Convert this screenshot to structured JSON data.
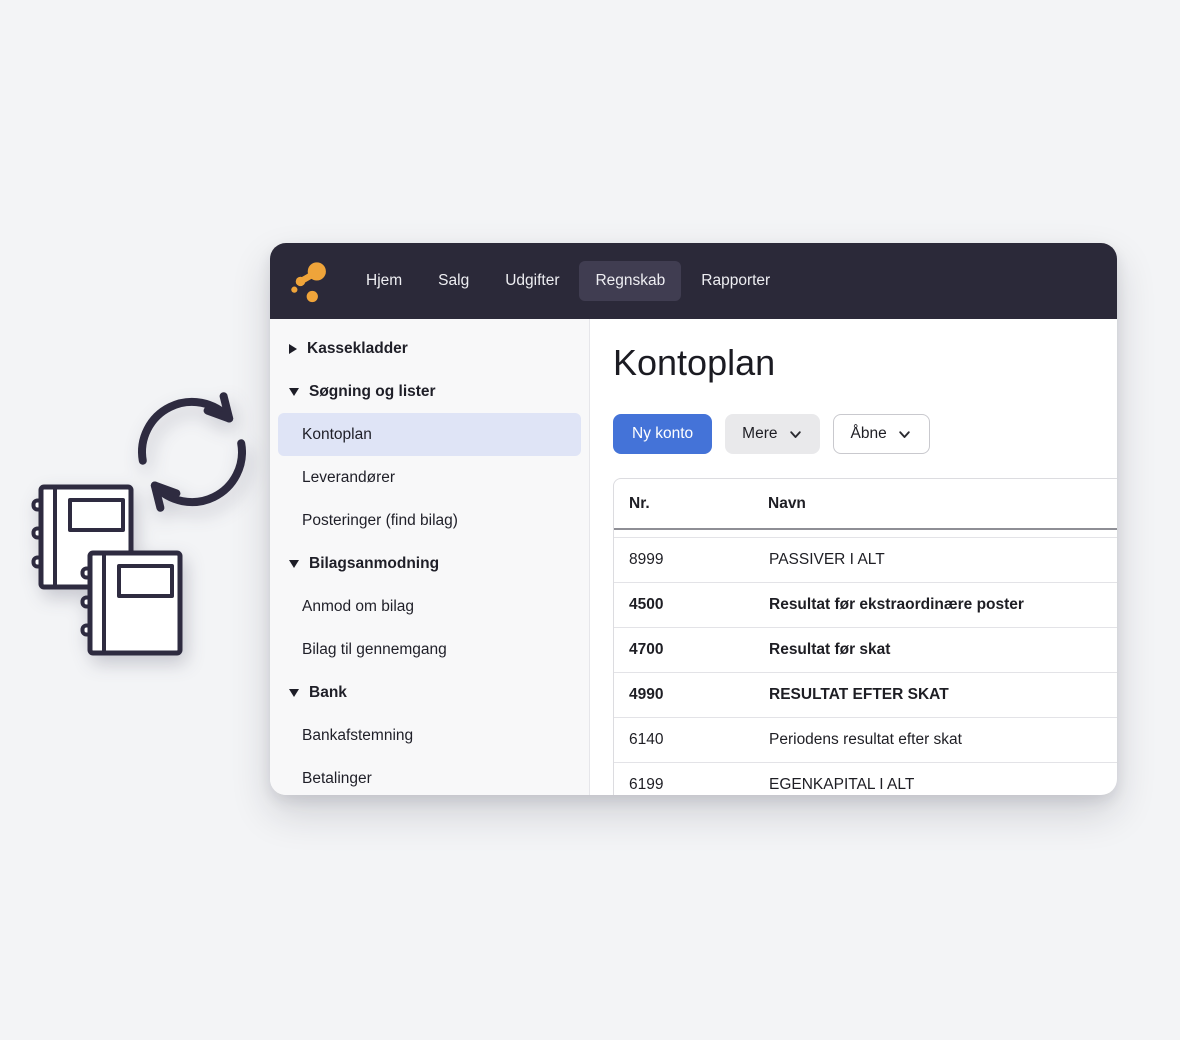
{
  "nav": {
    "items": [
      {
        "label": "Hjem",
        "active": false
      },
      {
        "label": "Salg",
        "active": false
      },
      {
        "label": "Udgifter",
        "active": false
      },
      {
        "label": "Regnskab",
        "active": true
      },
      {
        "label": "Rapporter",
        "active": false
      }
    ]
  },
  "sidebar": {
    "items": [
      {
        "label": "Kassekladder",
        "type": "section",
        "state": "collapsed",
        "selected": false
      },
      {
        "label": "Søgning og lister",
        "type": "section",
        "state": "expanded",
        "selected": false
      },
      {
        "label": "Kontoplan",
        "type": "item",
        "selected": true
      },
      {
        "label": "Leverandører",
        "type": "item",
        "selected": false
      },
      {
        "label": "Posteringer (find bilag)",
        "type": "item",
        "selected": false
      },
      {
        "label": "Bilagsanmodning",
        "type": "section",
        "state": "expanded",
        "selected": false
      },
      {
        "label": "Anmod om bilag",
        "type": "item",
        "selected": false
      },
      {
        "label": "Bilag til gennemgang",
        "type": "item",
        "selected": false
      },
      {
        "label": "Bank",
        "type": "section",
        "state": "expanded",
        "selected": false
      },
      {
        "label": "Bankafstemning",
        "type": "item",
        "selected": false
      },
      {
        "label": "Betalinger",
        "type": "item",
        "selected": false
      }
    ]
  },
  "main": {
    "title": "Kontoplan",
    "buttons": {
      "new_account": "Ny konto",
      "more": "Mere",
      "open": "Åbne"
    },
    "table": {
      "columns": [
        "Nr.",
        "Navn"
      ],
      "rows": [
        {
          "nr": "8999",
          "navn": "PASSIVER I ALT",
          "bold": false
        },
        {
          "nr": "4500",
          "navn": "Resultat før ekstraordinære poster",
          "bold": true
        },
        {
          "nr": "4700",
          "navn": "Resultat før skat",
          "bold": true
        },
        {
          "nr": "4990",
          "navn": "RESULTAT EFTER SKAT",
          "bold": true
        },
        {
          "nr": "6140",
          "navn": "Periodens resultat efter skat",
          "bold": false
        },
        {
          "nr": "6199",
          "navn": "EGENKAPITAL I ALT",
          "bold": false
        }
      ]
    }
  },
  "illustration": {
    "icons": [
      "sync-arrows-icon",
      "notebook-back-icon",
      "notebook-front-icon"
    ]
  },
  "colors": {
    "page_bg": "#f3f4f6",
    "navbar_bg": "#2b2939",
    "navbar_active_bg": "#403d51",
    "logo_orange": "#efa43a",
    "sidebar_bg": "#f8f8f9",
    "selected_item_bg": "#dfe4f6",
    "accent_blue": "#4473d8",
    "illustration_stroke": "#2e2b40"
  }
}
